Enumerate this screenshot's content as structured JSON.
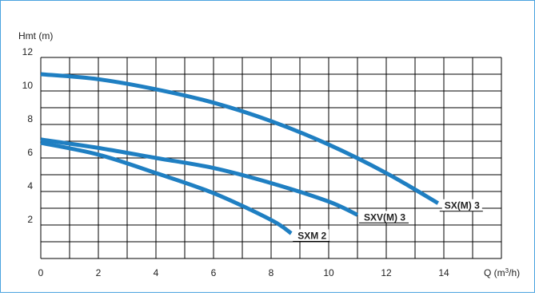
{
  "chart_data": {
    "type": "line",
    "xlabel": "Q (m³/h)",
    "ylabel": "Hmt (m)",
    "xlim": [
      0,
      16
    ],
    "ylim": [
      0,
      12
    ],
    "x_ticks": [
      "0",
      "2",
      "4",
      "6",
      "8",
      "10",
      "12",
      "14"
    ],
    "y_ticks": [
      "2",
      "4",
      "6",
      "8",
      "10",
      "12"
    ],
    "grid": true,
    "colors": {
      "curve": "#1f7fc2",
      "grid": "#000000",
      "frame": "#4aa3df"
    },
    "series": [
      {
        "name": "SX(M) 3",
        "points": [
          [
            0,
            11.0
          ],
          [
            2,
            10.7
          ],
          [
            4,
            10.1
          ],
          [
            6,
            9.3
          ],
          [
            8,
            8.2
          ],
          [
            10,
            6.8
          ],
          [
            12,
            5.1
          ],
          [
            13.8,
            3.3
          ]
        ]
      },
      {
        "name": "SXV(M) 3",
        "points": [
          [
            0,
            7.1
          ],
          [
            2,
            6.6
          ],
          [
            4,
            6.0
          ],
          [
            6,
            5.4
          ],
          [
            8,
            4.5
          ],
          [
            10,
            3.4
          ],
          [
            11,
            2.6
          ]
        ]
      },
      {
        "name": "SXM 2",
        "points": [
          [
            0,
            6.9
          ],
          [
            2,
            6.2
          ],
          [
            4,
            5.1
          ],
          [
            6,
            3.9
          ],
          [
            8,
            2.3
          ],
          [
            8.7,
            1.5
          ]
        ]
      }
    ]
  }
}
